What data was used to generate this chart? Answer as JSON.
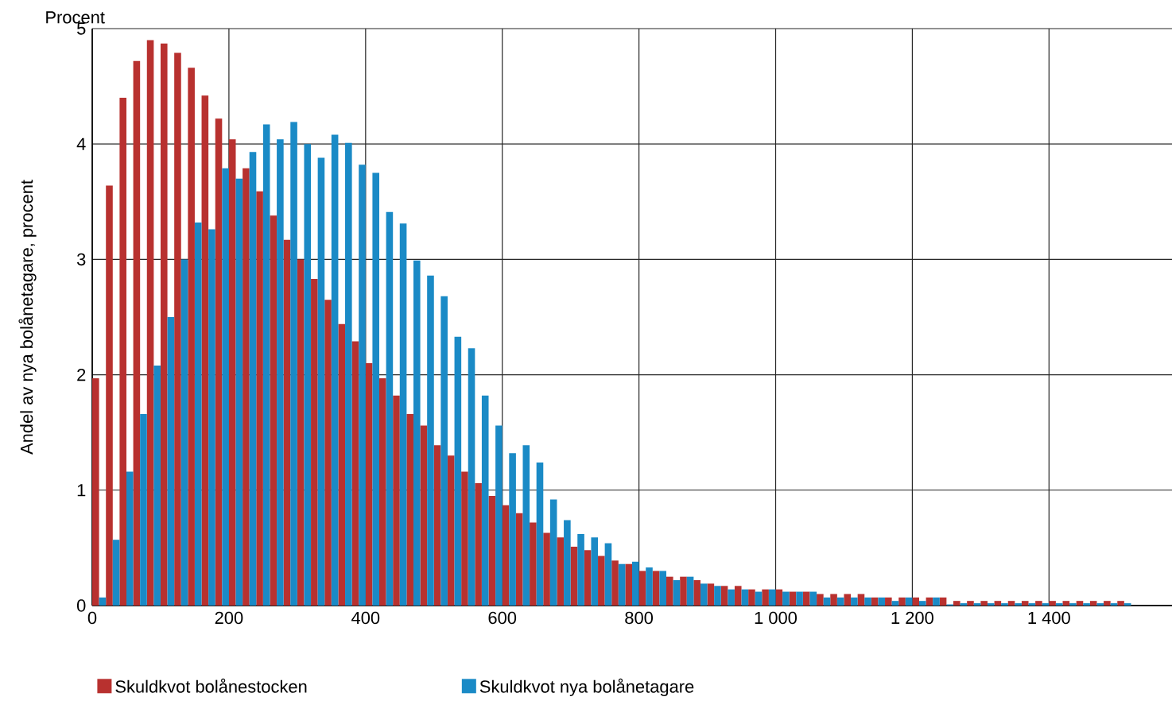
{
  "chart_data": {
    "type": "bar",
    "ylabel": "Andel av nya bolånetagare, procent",
    "annotations": [
      "Procent"
    ],
    "x": [
      10,
      30,
      50,
      70,
      90,
      110,
      130,
      150,
      170,
      190,
      210,
      230,
      250,
      270,
      290,
      310,
      330,
      350,
      370,
      390,
      410,
      430,
      450,
      470,
      490,
      510,
      530,
      550,
      570,
      590,
      610,
      630,
      650,
      670,
      690,
      710,
      730,
      750,
      770,
      790,
      810,
      830,
      850,
      870,
      890,
      910,
      930,
      950,
      970,
      990,
      1010,
      1030,
      1050,
      1070,
      1090,
      1110,
      1130,
      1150,
      1170,
      1190,
      1210,
      1230,
      1250,
      1270,
      1290,
      1310,
      1330,
      1350,
      1370,
      1390,
      1410,
      1430,
      1450,
      1470,
      1490,
      1510
    ],
    "series": [
      {
        "name": "Skuldkvot bolånestocken",
        "color": "#b8312f",
        "values": [
          1.97,
          3.64,
          4.4,
          4.72,
          4.9,
          4.87,
          4.79,
          4.66,
          4.42,
          4.22,
          4.04,
          3.79,
          3.59,
          3.38,
          3.17,
          3.0,
          2.83,
          2.65,
          2.44,
          2.29,
          2.1,
          1.97,
          1.82,
          1.66,
          1.56,
          1.39,
          1.3,
          1.16,
          1.06,
          0.95,
          0.87,
          0.8,
          0.72,
          0.63,
          0.59,
          0.51,
          0.48,
          0.43,
          0.39,
          0.36,
          0.3,
          0.3,
          0.25,
          0.25,
          0.22,
          0.19,
          0.17,
          0.17,
          0.14,
          0.14,
          0.14,
          0.12,
          0.12,
          0.1,
          0.1,
          0.1,
          0.1,
          0.07,
          0.07,
          0.07,
          0.07,
          0.07,
          0.07,
          0.04,
          0.04,
          0.04,
          0.04,
          0.04,
          0.04,
          0.04,
          0.04,
          0.04,
          0.04,
          0.04,
          0.04,
          0.04
        ]
      },
      {
        "name": "Skuldkvot nya bolånetagare",
        "color": "#1a8ac6",
        "values": [
          0.07,
          0.57,
          1.16,
          1.66,
          2.08,
          2.5,
          3.0,
          3.32,
          3.26,
          3.79,
          3.7,
          3.93,
          4.17,
          4.04,
          4.19,
          4.0,
          3.88,
          4.08,
          4.01,
          3.82,
          3.75,
          3.41,
          3.31,
          2.99,
          2.86,
          2.68,
          2.33,
          2.23,
          1.82,
          1.56,
          1.32,
          1.39,
          1.24,
          0.92,
          0.74,
          0.62,
          0.59,
          0.54,
          0.36,
          0.38,
          0.33,
          0.3,
          0.22,
          0.25,
          0.19,
          0.17,
          0.14,
          0.14,
          0.12,
          0.14,
          0.12,
          0.12,
          0.12,
          0.07,
          0.07,
          0.07,
          0.07,
          0.07,
          0.04,
          0.07,
          0.04,
          0.07,
          0.01,
          0.02,
          0.02,
          0.02,
          0.02,
          0.02,
          0.02,
          0.02,
          0.02,
          0.02,
          0.02,
          0.02,
          0.02,
          0.02
        ]
      }
    ],
    "xlim": [
      0,
      1580
    ],
    "ylim": [
      0,
      5
    ],
    "xticks": [
      0,
      200,
      400,
      600,
      800,
      {
        "value": 1000,
        "label": "1 000"
      },
      {
        "value": 1200,
        "label": "1 200"
      },
      {
        "value": 1400,
        "label": "1 400"
      }
    ],
    "yticks": [
      0,
      1,
      2,
      3,
      4,
      5
    ],
    "grid": true,
    "legend": "bottom"
  }
}
